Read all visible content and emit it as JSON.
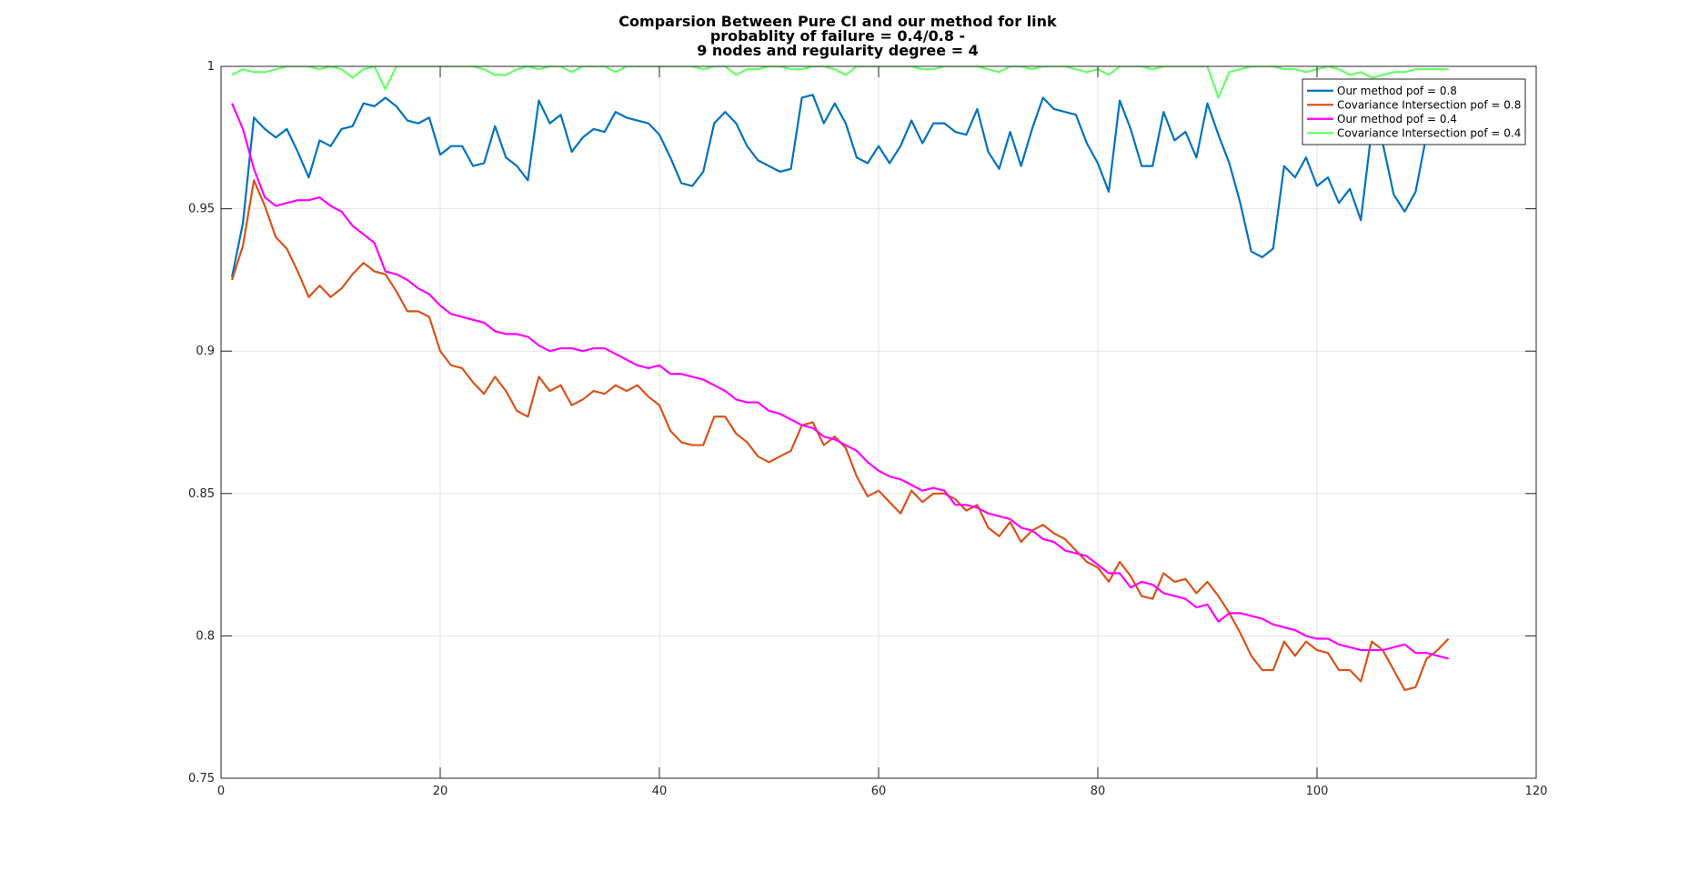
{
  "chart_data": {
    "type": "line",
    "title_lines": [
      "Comparsion Between Pure CI and our method for link",
      "probablity of failure = 0.4/0.8 -",
      "9 nodes and regularity degree = 4"
    ],
    "xlabel": "",
    "ylabel": "",
    "xlim": [
      0,
      120
    ],
    "ylim": [
      0.75,
      1
    ],
    "xticks": [
      "0",
      "20",
      "40",
      "60",
      "80",
      "100",
      "120"
    ],
    "yticks": [
      "0.75",
      "0.8",
      "0.85",
      "0.9",
      "0.95",
      "1"
    ],
    "grid": true,
    "legend_position": "top-right",
    "x_start": 1,
    "series": [
      {
        "name": "Our method pof = 0.8",
        "color": "#0072BD",
        "values": [
          0.926,
          0.945,
          0.982,
          0.978,
          0.975,
          0.978,
          0.97,
          0.961,
          0.974,
          0.972,
          0.978,
          0.979,
          0.987,
          0.986,
          0.989,
          0.986,
          0.981,
          0.98,
          0.982,
          0.969,
          0.972,
          0.972,
          0.965,
          0.966,
          0.979,
          0.968,
          0.965,
          0.96,
          0.988,
          0.98,
          0.983,
          0.97,
          0.975,
          0.978,
          0.977,
          0.984,
          0.982,
          0.981,
          0.98,
          0.976,
          0.968,
          0.959,
          0.958,
          0.963,
          0.98,
          0.984,
          0.98,
          0.972,
          0.967,
          0.965,
          0.963,
          0.964,
          0.989,
          0.99,
          0.98,
          0.987,
          0.98,
          0.968,
          0.966,
          0.972,
          0.966,
          0.972,
          0.981,
          0.973,
          0.98,
          0.98,
          0.977,
          0.976,
          0.985,
          0.97,
          0.964,
          0.977,
          0.965,
          0.978,
          0.989,
          0.985,
          0.984,
          0.983,
          0.973,
          0.966,
          0.956,
          0.988,
          0.978,
          0.965,
          0.965,
          0.984,
          0.974,
          0.977,
          0.968,
          0.987,
          0.976,
          0.966,
          0.952,
          0.935,
          0.933,
          0.936,
          0.965,
          0.961,
          0.968,
          0.958,
          0.961,
          0.952,
          0.957,
          0.946,
          0.978,
          0.973,
          0.955,
          0.949,
          0.956,
          0.976,
          0.98,
          0.981
        ]
      },
      {
        "name": "Covariance Intersection pof = 0.8",
        "color": "#D95319",
        "values": [
          0.925,
          0.937,
          0.96,
          0.951,
          0.94,
          0.936,
          0.928,
          0.919,
          0.923,
          0.919,
          0.922,
          0.927,
          0.931,
          0.928,
          0.927,
          0.921,
          0.914,
          0.914,
          0.912,
          0.9,
          0.895,
          0.894,
          0.889,
          0.885,
          0.891,
          0.886,
          0.879,
          0.877,
          0.891,
          0.886,
          0.888,
          0.881,
          0.883,
          0.886,
          0.885,
          0.888,
          0.886,
          0.888,
          0.884,
          0.881,
          0.872,
          0.868,
          0.867,
          0.867,
          0.877,
          0.877,
          0.871,
          0.868,
          0.863,
          0.861,
          0.863,
          0.865,
          0.874,
          0.875,
          0.867,
          0.87,
          0.866,
          0.856,
          0.849,
          0.851,
          0.847,
          0.843,
          0.851,
          0.847,
          0.85,
          0.85,
          0.848,
          0.844,
          0.846,
          0.838,
          0.835,
          0.84,
          0.833,
          0.837,
          0.839,
          0.836,
          0.834,
          0.83,
          0.826,
          0.824,
          0.819,
          0.826,
          0.821,
          0.814,
          0.813,
          0.822,
          0.819,
          0.82,
          0.815,
          0.819,
          0.814,
          0.808,
          0.801,
          0.793,
          0.788,
          0.788,
          0.798,
          0.793,
          0.798,
          0.795,
          0.794,
          0.788,
          0.788,
          0.784,
          0.798,
          0.795,
          0.788,
          0.781,
          0.782,
          0.792,
          0.795,
          0.799
        ]
      },
      {
        "name": "Our method pof = 0.4",
        "color": "#FF00FF",
        "values": [
          0.987,
          0.978,
          0.964,
          0.954,
          0.951,
          0.952,
          0.953,
          0.953,
          0.954,
          0.951,
          0.949,
          0.944,
          0.941,
          0.938,
          0.928,
          0.927,
          0.925,
          0.922,
          0.92,
          0.916,
          0.913,
          0.912,
          0.911,
          0.91,
          0.907,
          0.906,
          0.906,
          0.905,
          0.902,
          0.9,
          0.901,
          0.901,
          0.9,
          0.901,
          0.901,
          0.899,
          0.897,
          0.895,
          0.894,
          0.895,
          0.892,
          0.892,
          0.891,
          0.89,
          0.888,
          0.886,
          0.883,
          0.882,
          0.882,
          0.879,
          0.878,
          0.876,
          0.874,
          0.873,
          0.87,
          0.869,
          0.867,
          0.865,
          0.861,
          0.858,
          0.856,
          0.855,
          0.853,
          0.851,
          0.852,
          0.851,
          0.846,
          0.846,
          0.845,
          0.843,
          0.842,
          0.841,
          0.838,
          0.837,
          0.834,
          0.833,
          0.83,
          0.829,
          0.828,
          0.825,
          0.822,
          0.822,
          0.817,
          0.819,
          0.818,
          0.815,
          0.814,
          0.813,
          0.81,
          0.811,
          0.805,
          0.808,
          0.808,
          0.807,
          0.806,
          0.804,
          0.803,
          0.802,
          0.8,
          0.799,
          0.799,
          0.797,
          0.796,
          0.795,
          0.795,
          0.795,
          0.796,
          0.797,
          0.794,
          0.794,
          0.793,
          0.792
        ]
      },
      {
        "name": "Covariance Intersection pof = 0.4",
        "color": "#66FF66",
        "values": [
          0.997,
          0.999,
          0.998,
          0.998,
          0.999,
          1.0,
          1.0,
          1.0,
          0.999,
          1.0,
          0.999,
          0.996,
          0.999,
          1.0,
          0.992,
          1.0,
          1.0,
          1.0,
          1.0,
          1.0,
          1.0,
          1.0,
          1.0,
          0.999,
          0.997,
          0.997,
          0.999,
          1.0,
          0.999,
          1.0,
          1.0,
          0.998,
          1.0,
          1.0,
          1.0,
          0.998,
          1.0,
          1.0,
          1.0,
          1.0,
          1.0,
          1.0,
          1.0,
          0.999,
          1.0,
          1.0,
          0.997,
          0.999,
          0.999,
          1.0,
          1.0,
          0.999,
          0.999,
          1.0,
          1.0,
          0.999,
          0.997,
          1.0,
          1.0,
          1.0,
          1.0,
          1.0,
          1.0,
          0.999,
          0.999,
          1.0,
          1.0,
          1.0,
          1.0,
          0.999,
          0.998,
          1.0,
          1.0,
          0.999,
          1.0,
          1.0,
          1.0,
          0.999,
          0.998,
          0.999,
          0.997,
          1.0,
          1.0,
          1.0,
          0.999,
          1.0,
          1.0,
          1.0,
          1.0,
          1.0,
          0.989,
          0.998,
          0.999,
          1.0,
          1.0,
          1.0,
          0.999,
          0.999,
          0.998,
          0.999,
          1.0,
          0.999,
          0.997,
          0.998,
          0.996,
          0.997,
          0.998,
          0.998,
          0.999,
          0.999,
          0.999,
          0.999
        ]
      }
    ]
  }
}
